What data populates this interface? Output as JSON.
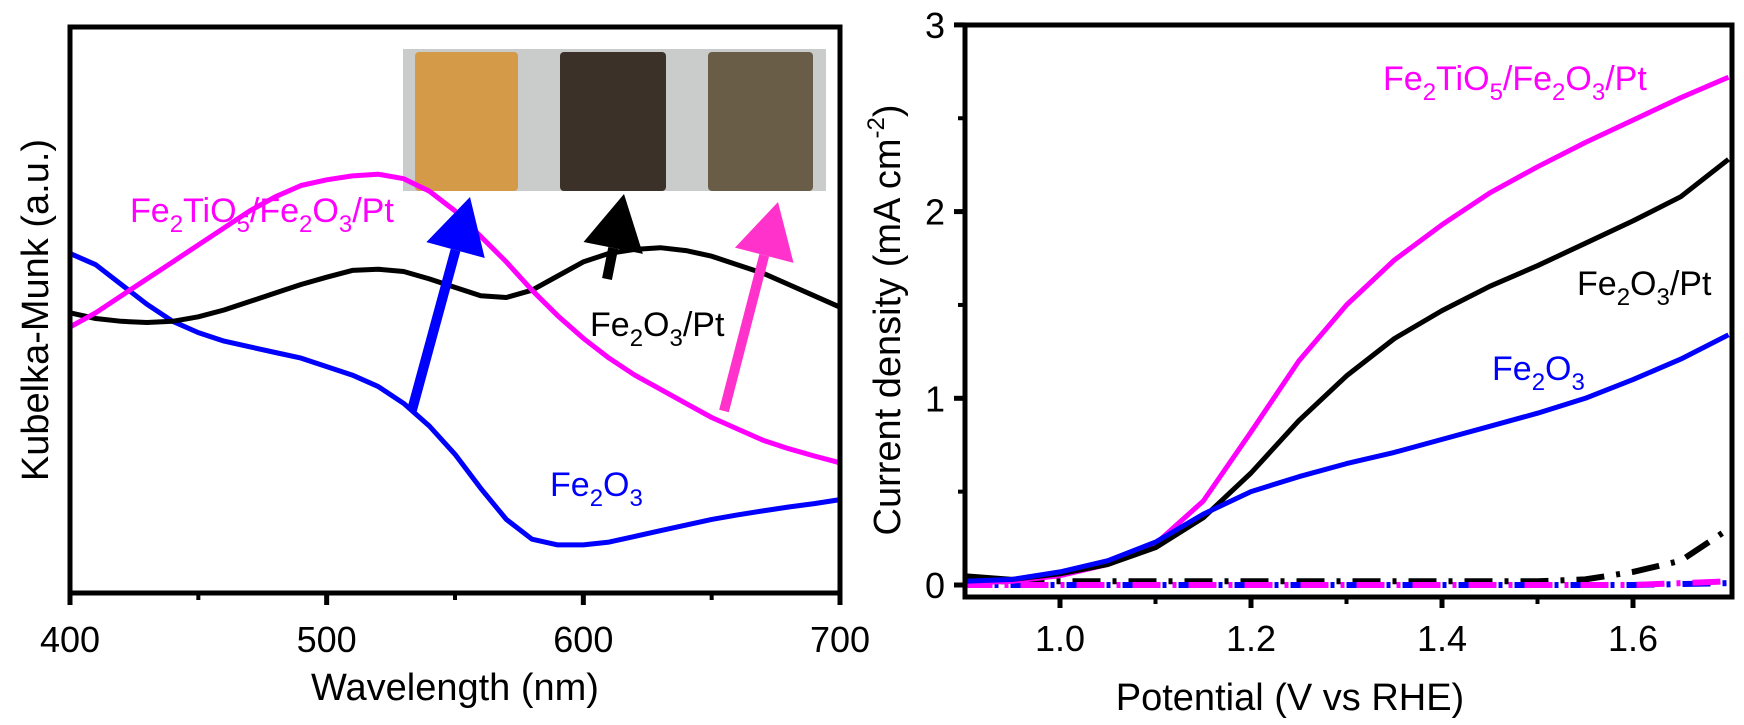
{
  "chart_data": [
    {
      "type": "line",
      "panel": "left",
      "title": "",
      "xlabel": "Wavelength (nm)",
      "ylabel": "Kubelka-Munk (a.u.)",
      "xlim": [
        400,
        700
      ],
      "ylim": [
        0,
        10
      ],
      "x_ticks": [
        400,
        500,
        600,
        700
      ],
      "x_tick_labels": [
        "400",
        "500",
        "600",
        "700"
      ],
      "x_minor_ticks": [
        450,
        550,
        650
      ],
      "y_ticks": [],
      "grid": false,
      "legend": "none (inline annotations)",
      "series": [
        {
          "name": "Fe2O3",
          "label_parts": [
            [
              "Fe",
              ""
            ],
            [
              "2",
              "sub"
            ],
            [
              "O",
              ""
            ],
            [
              "3",
              "sub"
            ]
          ],
          "color": "#0000ff",
          "x": [
            400,
            410,
            420,
            430,
            440,
            450,
            460,
            470,
            480,
            490,
            500,
            510,
            520,
            530,
            540,
            550,
            560,
            570,
            580,
            590,
            600,
            610,
            620,
            630,
            640,
            650,
            660,
            670,
            680,
            690,
            700
          ],
          "y": [
            6.0,
            5.8,
            5.45,
            5.1,
            4.8,
            4.6,
            4.45,
            4.35,
            4.25,
            4.15,
            4.0,
            3.85,
            3.65,
            3.35,
            2.95,
            2.45,
            1.85,
            1.3,
            0.95,
            0.85,
            0.85,
            0.9,
            1.0,
            1.1,
            1.2,
            1.3,
            1.38,
            1.45,
            1.52,
            1.58,
            1.65
          ]
        },
        {
          "name": "Fe2O3/Pt",
          "label_parts": [
            [
              "Fe",
              ""
            ],
            [
              "2",
              "sub"
            ],
            [
              "O",
              ""
            ],
            [
              "3",
              "sub"
            ],
            [
              "/Pt",
              ""
            ]
          ],
          "color": "#000000",
          "x": [
            400,
            410,
            420,
            430,
            440,
            450,
            460,
            470,
            480,
            490,
            500,
            510,
            520,
            530,
            540,
            550,
            560,
            570,
            580,
            590,
            600,
            610,
            620,
            630,
            640,
            650,
            660,
            670,
            680,
            690,
            700
          ],
          "y": [
            4.95,
            4.85,
            4.8,
            4.78,
            4.8,
            4.88,
            5.0,
            5.15,
            5.3,
            5.45,
            5.58,
            5.7,
            5.72,
            5.68,
            5.55,
            5.4,
            5.25,
            5.22,
            5.35,
            5.6,
            5.85,
            6.0,
            6.07,
            6.1,
            6.05,
            5.95,
            5.8,
            5.65,
            5.45,
            5.25,
            5.05
          ]
        },
        {
          "name": "Fe2TiO5/Fe2O3/Pt",
          "label_parts": [
            [
              "Fe",
              ""
            ],
            [
              "2",
              "sub"
            ],
            [
              "TiO",
              ""
            ],
            [
              "5",
              "sub"
            ],
            [
              "/Fe",
              ""
            ],
            [
              "2",
              "sub"
            ],
            [
              "O",
              ""
            ],
            [
              "3",
              "sub"
            ],
            [
              "/Pt",
              ""
            ]
          ],
          "color": "#ff00ff",
          "x": [
            400,
            410,
            420,
            430,
            440,
            450,
            460,
            470,
            480,
            490,
            500,
            510,
            520,
            530,
            540,
            550,
            560,
            570,
            580,
            590,
            600,
            610,
            620,
            630,
            640,
            650,
            660,
            670,
            680,
            690,
            700
          ],
          "y": [
            4.7,
            4.95,
            5.25,
            5.55,
            5.85,
            6.15,
            6.45,
            6.75,
            7.0,
            7.2,
            7.3,
            7.37,
            7.4,
            7.32,
            7.1,
            6.75,
            6.3,
            5.85,
            5.35,
            4.9,
            4.5,
            4.15,
            3.85,
            3.6,
            3.35,
            3.1,
            2.9,
            2.7,
            2.55,
            2.42,
            2.3
          ]
        }
      ],
      "annotations": [
        {
          "text": "Fe2TiO5/Fe2O3/Pt",
          "color": "#ff00ff"
        },
        {
          "text": "Fe2O3/Pt",
          "color": "#000000"
        },
        {
          "text": "Fe2O3",
          "color": "#0000ff"
        }
      ],
      "arrows": [
        {
          "from_series": "Fe2O3",
          "to": "inset sample 1 (orange)",
          "color": "#0000ff"
        },
        {
          "from_series": "Fe2O3/Pt",
          "to": "inset sample 2 (dark brown)",
          "color": "#000000"
        },
        {
          "from_series": "Fe2TiO5/Fe2O3/Pt",
          "to": "inset sample 3 (grey-brown)",
          "color": "#ff33cc"
        }
      ],
      "inset": {
        "description": "photo of three sample films",
        "samples": [
          {
            "color": "#d49a48"
          },
          {
            "color": "#3b3129"
          },
          {
            "color": "#6a5d48"
          }
        ],
        "background": "#c9cccb"
      }
    },
    {
      "type": "line",
      "panel": "right",
      "title": "",
      "xlabel": "Potential (V vs RHE)",
      "ylabel_parts": [
        [
          "Current density (mA cm",
          ""
        ],
        [
          "-2",
          "sup"
        ],
        [
          ")",
          ""
        ]
      ],
      "ylabel": "Current density (mA cm-2)",
      "xlim": [
        0.9,
        1.7
      ],
      "ylim": [
        -0.06,
        3.0
      ],
      "x_ticks": [
        1.0,
        1.2,
        1.4,
        1.6
      ],
      "x_tick_labels": [
        "1.0",
        "1.2",
        "1.4",
        "1.6"
      ],
      "x_minor_ticks": [
        1.1,
        1.3,
        1.5
      ],
      "y_ticks": [
        0,
        1,
        2,
        3
      ],
      "y_tick_labels": [
        "0",
        "1",
        "2",
        "3"
      ],
      "y_minor_ticks": [
        0.5,
        1.5,
        2.5
      ],
      "grid": false,
      "legend": "none (inline annotations)",
      "series": [
        {
          "name": "Fe2TiO5/Fe2O3/Pt",
          "style": "solid",
          "color": "#ff00ff",
          "x": [
            0.9,
            0.95,
            1.0,
            1.05,
            1.1,
            1.15,
            1.2,
            1.25,
            1.3,
            1.35,
            1.4,
            1.45,
            1.5,
            1.55,
            1.6,
            1.65,
            1.7
          ],
          "y": [
            0.01,
            0.02,
            0.05,
            0.11,
            0.22,
            0.45,
            0.82,
            1.2,
            1.5,
            1.74,
            1.93,
            2.1,
            2.24,
            2.37,
            2.49,
            2.61,
            2.72
          ]
        },
        {
          "name": "Fe2O3/Pt",
          "style": "solid",
          "color": "#000000",
          "x": [
            0.9,
            0.95,
            1.0,
            1.05,
            1.1,
            1.15,
            1.2,
            1.25,
            1.3,
            1.35,
            1.4,
            1.45,
            1.5,
            1.55,
            1.6,
            1.65,
            1.7
          ],
          "y": [
            0.05,
            0.03,
            0.06,
            0.11,
            0.2,
            0.36,
            0.6,
            0.88,
            1.12,
            1.32,
            1.47,
            1.6,
            1.71,
            1.83,
            1.95,
            2.08,
            2.28
          ]
        },
        {
          "name": "Fe2O3",
          "style": "solid",
          "color": "#0000ff",
          "x": [
            0.9,
            0.95,
            1.0,
            1.05,
            1.1,
            1.15,
            1.2,
            1.25,
            1.3,
            1.35,
            1.4,
            1.45,
            1.5,
            1.55,
            1.6,
            1.65,
            1.7
          ],
          "y": [
            0.02,
            0.03,
            0.07,
            0.13,
            0.23,
            0.38,
            0.5,
            0.58,
            0.65,
            0.71,
            0.78,
            0.85,
            0.92,
            1.0,
            1.1,
            1.21,
            1.34
          ]
        },
        {
          "name": "Fe2O3/Pt (dark)",
          "style": "dash-dot",
          "color": "#000000",
          "x": [
            0.9,
            1.0,
            1.2,
            1.4,
            1.5,
            1.55,
            1.6,
            1.65,
            1.7
          ],
          "y": [
            0.02,
            0.02,
            0.02,
            0.02,
            0.02,
            0.03,
            0.07,
            0.13,
            0.3
          ]
        },
        {
          "name": "Fe2O3 (dark)",
          "style": "dash-dot",
          "color": "#0000ff",
          "x": [
            0.9,
            1.0,
            1.2,
            1.4,
            1.6,
            1.7
          ],
          "y": [
            0.0,
            0.0,
            0.0,
            0.0,
            0.0,
            0.01
          ]
        },
        {
          "name": "Fe2TiO5/Fe2O3/Pt (dark)",
          "style": "dash-dot",
          "color": "#ff00ff",
          "x": [
            0.9,
            1.0,
            1.2,
            1.4,
            1.6,
            1.7
          ],
          "y": [
            0.0,
            0.0,
            0.0,
            0.0,
            0.0,
            0.02
          ]
        }
      ],
      "annotations": [
        {
          "text": "Fe2TiO5/Fe2O3/Pt",
          "color": "#ff00ff"
        },
        {
          "text": "Fe2O3/Pt",
          "color": "#000000"
        },
        {
          "text": "Fe2O3",
          "color": "#0000ff"
        }
      ]
    }
  ],
  "labels": {
    "left_xlabel": "Wavelength (nm)",
    "left_ylabel": "Kubelka-Munk (a.u.)",
    "right_xlabel": "Potential (V vs RHE)",
    "right_ylabel_main": "Current density (mA cm",
    "right_ylabel_sup": "-2",
    "right_ylabel_end": ")"
  }
}
